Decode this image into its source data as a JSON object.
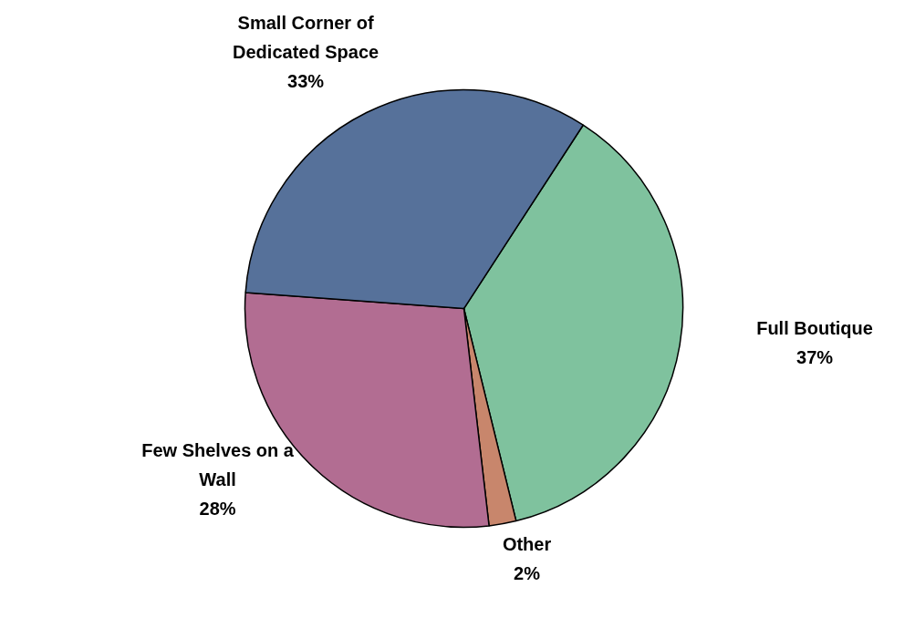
{
  "chart_data": {
    "type": "pie",
    "categories": [
      "Full Boutique",
      "Other",
      "Few Shelves on a Wall",
      "Small Corner of Dedicated Space"
    ],
    "values": [
      37,
      2,
      28,
      33
    ],
    "colors": [
      "#7fc29e",
      "#c8866c",
      "#b26d92",
      "#56719a"
    ],
    "value_labels": [
      "37%",
      "2%",
      "28%",
      "33%"
    ]
  }
}
